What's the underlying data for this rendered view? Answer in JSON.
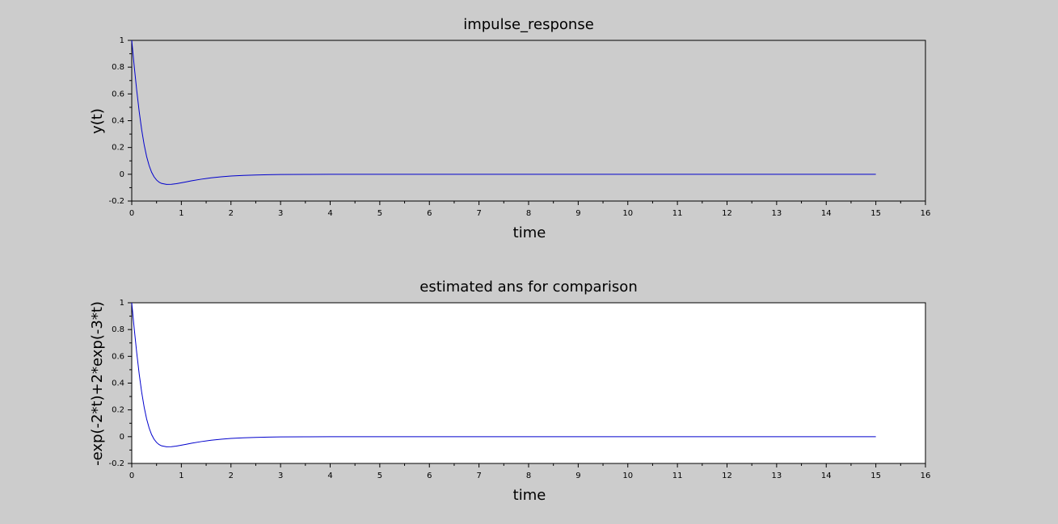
{
  "window": {
    "background": "#cccccc"
  },
  "chart_data": [
    {
      "type": "line",
      "title": "impulse_response",
      "xlabel": "time",
      "ylabel": "y(t)",
      "xlim": [
        0,
        16
      ],
      "ylim": [
        -0.2,
        1
      ],
      "x_ticks": [
        "0",
        "1",
        "2",
        "3",
        "4",
        "5",
        "6",
        "7",
        "8",
        "9",
        "10",
        "11",
        "12",
        "13",
        "14",
        "15",
        "16"
      ],
      "y_ticks": [
        "-0.2",
        "0",
        "0.2",
        "0.4",
        "0.6",
        "0.8",
        "1"
      ],
      "plot_background": "#cccccc",
      "line_color": "#0000cc",
      "grid": false,
      "series": [
        {
          "x": [
            0,
            0.05,
            0.1,
            0.15,
            0.2,
            0.25,
            0.3,
            0.35,
            0.4,
            0.45,
            0.5,
            0.55,
            0.6,
            0.7,
            0.8,
            0.9,
            1.0,
            1.1,
            1.2,
            1.4,
            1.6,
            1.8,
            2.0,
            2.25,
            2.5,
            2.75,
            3.0,
            3.5,
            4.0,
            5.0,
            6.0,
            8.0,
            10.0,
            12.0,
            15.0
          ],
          "values": [
            1.0,
            0.8059,
            0.6276,
            0.4684,
            0.3324,
            0.2208,
            0.1325,
            0.0652,
            0.0156,
            -0.0192,
            -0.043,
            -0.0587,
            -0.0683,
            -0.0758,
            -0.075,
            -0.0701,
            -0.0635,
            -0.0565,
            -0.0493,
            -0.0368,
            -0.0269,
            -0.0191,
            -0.0134,
            -0.0084,
            -0.0052,
            -0.0031,
            -0.0019,
            -0.0007,
            -0.0003,
            -5e-05,
            0.0,
            0.0,
            0.0,
            0.0,
            0.0
          ]
        }
      ]
    },
    {
      "type": "line",
      "title": "estimated ans for comparison",
      "xlabel": "time",
      "ylabel": "-exp(-2*t)+2*exp(-3*t)",
      "xlim": [
        0,
        16
      ],
      "ylim": [
        -0.2,
        1
      ],
      "x_ticks": [
        "0",
        "1",
        "2",
        "3",
        "4",
        "5",
        "6",
        "7",
        "8",
        "9",
        "10",
        "11",
        "12",
        "13",
        "14",
        "15",
        "16"
      ],
      "y_ticks": [
        "-0.2",
        "0",
        "0.2",
        "0.4",
        "0.6",
        "0.8",
        "1"
      ],
      "plot_background": "#ffffff",
      "line_color": "#0000cc",
      "grid": false,
      "series": [
        {
          "x": [
            0,
            0.05,
            0.1,
            0.15,
            0.2,
            0.25,
            0.3,
            0.35,
            0.4,
            0.45,
            0.5,
            0.55,
            0.6,
            0.7,
            0.8,
            0.9,
            1.0,
            1.1,
            1.2,
            1.4,
            1.6,
            1.8,
            2.0,
            2.25,
            2.5,
            2.75,
            3.0,
            3.5,
            4.0,
            5.0,
            6.0,
            8.0,
            10.0,
            12.0,
            15.0
          ],
          "values": [
            1.0,
            0.8059,
            0.6276,
            0.4684,
            0.3324,
            0.2208,
            0.1325,
            0.0652,
            0.0156,
            -0.0192,
            -0.043,
            -0.0587,
            -0.0683,
            -0.0758,
            -0.075,
            -0.0701,
            -0.0635,
            -0.0565,
            -0.0493,
            -0.0368,
            -0.0269,
            -0.0191,
            -0.0134,
            -0.0084,
            -0.0052,
            -0.0031,
            -0.0019,
            -0.0007,
            -0.0003,
            -5e-05,
            0.0,
            0.0,
            0.0,
            0.0,
            0.0
          ]
        }
      ]
    }
  ]
}
